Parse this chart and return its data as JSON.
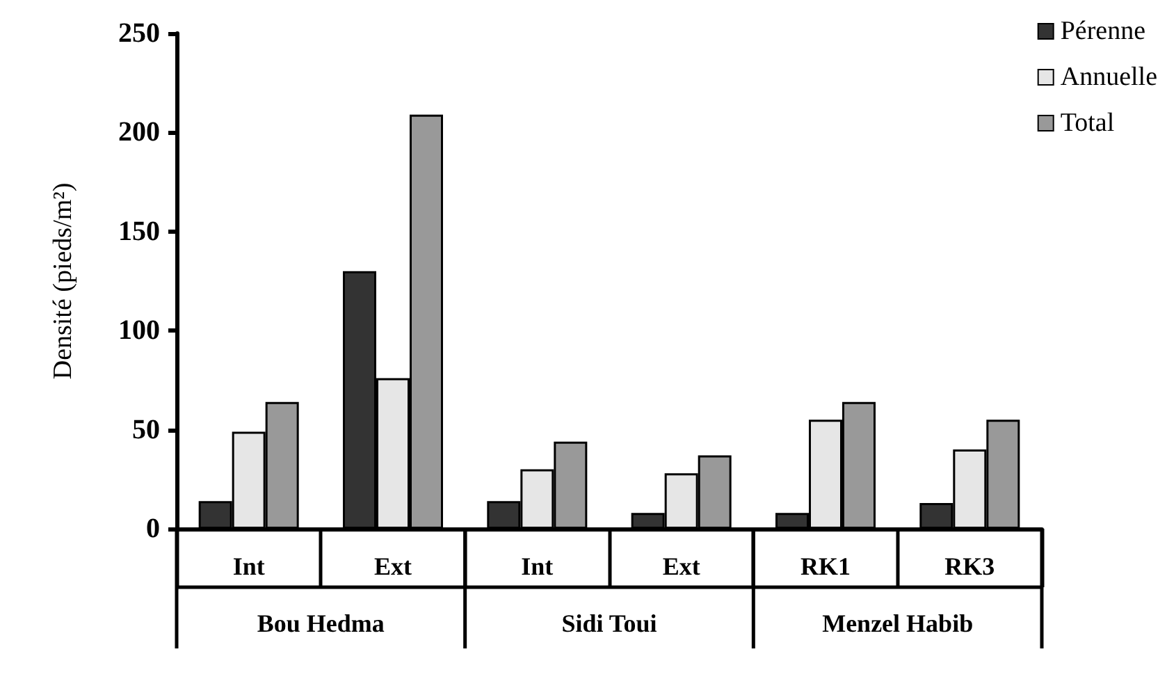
{
  "chart_data": {
    "type": "bar",
    "ylabel": "Densité (pieds/m²)",
    "categories": [
      "Int",
      "Ext",
      "Int",
      "Ext",
      "RK1",
      "RK3"
    ],
    "series": [
      {
        "name": "Pérenne",
        "color": "#333333",
        "values": [
          14,
          130,
          14,
          8,
          8,
          13
        ]
      },
      {
        "name": "Annuelle",
        "color": "#e6e6e6",
        "values": [
          49,
          76,
          30,
          28,
          55,
          40
        ]
      },
      {
        "name": "Total",
        "color": "#999999",
        "values": [
          64,
          209,
          44,
          37,
          64,
          55
        ]
      }
    ],
    "annotations": [
      "Bou Hedma",
      "Sidi Toui",
      "Menzel Habib"
    ],
    "ylim": [
      0,
      250
    ],
    "yticks": [
      0,
      50,
      100,
      150,
      200,
      250
    ],
    "grid": false,
    "legend": "top right"
  }
}
